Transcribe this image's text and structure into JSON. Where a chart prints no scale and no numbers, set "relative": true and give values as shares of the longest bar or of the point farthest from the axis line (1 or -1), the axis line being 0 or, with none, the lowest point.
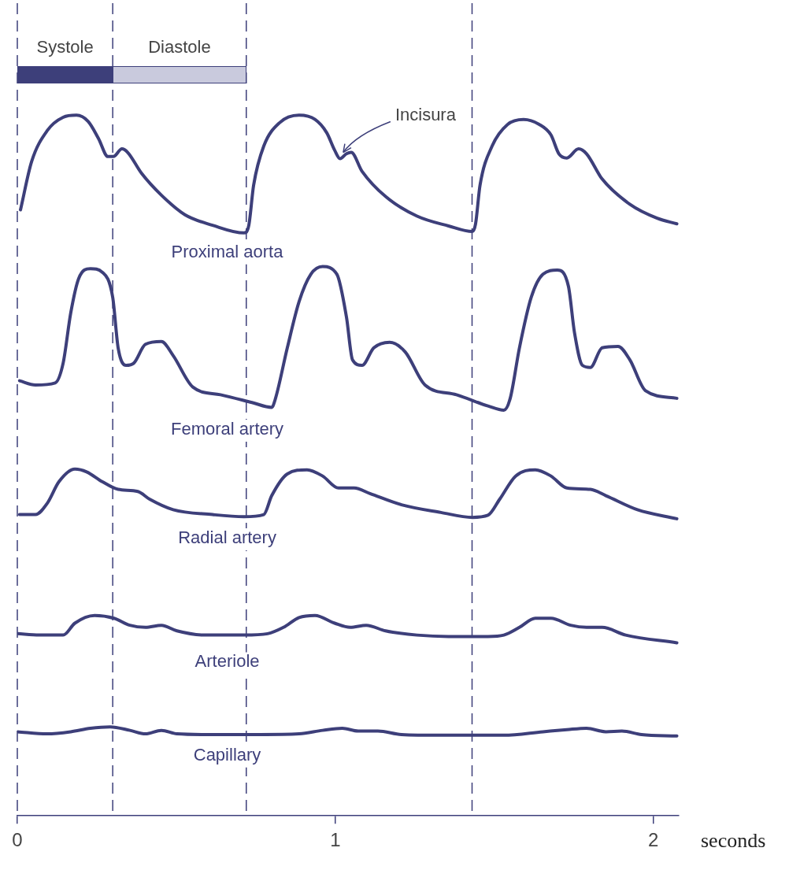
{
  "chart_data": {
    "type": "line",
    "relative": true,
    "xlabel": "seconds",
    "xlim": [
      0,
      2.08
    ],
    "xticks": [
      0,
      1,
      2
    ],
    "legend": false,
    "grid": false,
    "marker": "none",
    "line_style": "solid",
    "series": [
      {
        "name": "Proximal aorta",
        "color": "#3d3f7a",
        "x": [
          0.01,
          0.045,
          0.094,
          0.144,
          0.186,
          0.223,
          0.255,
          0.285,
          0.302,
          0.329,
          0.347,
          0.391,
          0.453,
          0.527,
          0.614,
          0.713,
          0.728,
          0.743,
          0.775,
          0.824,
          0.886,
          0.936,
          0.973,
          0.998,
          1.015,
          1.035,
          1.05,
          1.084,
          1.158,
          1.257,
          1.356,
          1.431,
          1.441,
          1.455,
          1.493,
          1.542,
          1.592,
          1.641,
          1.678,
          1.703,
          1.728,
          1.765,
          1.79,
          1.839,
          1.926,
          2.012,
          2.074
        ],
        "values": [
          0.865,
          0.934,
          0.978,
          0.997,
          1.0,
          0.991,
          0.967,
          0.941,
          0.941,
          0.952,
          0.947,
          0.917,
          0.886,
          0.858,
          0.843,
          0.832,
          0.843,
          0.9,
          0.956,
          0.989,
          1.0,
          0.994,
          0.975,
          0.95,
          0.938,
          0.945,
          0.947,
          0.92,
          0.884,
          0.856,
          0.842,
          0.834,
          0.845,
          0.9,
          0.956,
          0.987,
          0.994,
          0.987,
          0.972,
          0.945,
          0.939,
          0.952,
          0.945,
          0.909,
          0.873,
          0.853,
          0.845
        ]
      },
      {
        "name": "Femoral artery",
        "color": "#3d3f7a",
        "x": [
          0.007,
          0.057,
          0.119,
          0.144,
          0.168,
          0.193,
          0.23,
          0.267,
          0.3,
          0.317,
          0.342,
          0.366,
          0.403,
          0.453,
          0.49,
          0.552,
          0.639,
          0.738,
          0.8,
          0.812,
          0.849,
          0.886,
          0.923,
          0.96,
          1.005,
          1.035,
          1.054,
          1.084,
          1.121,
          1.171,
          1.22,
          1.282,
          1.381,
          1.48,
          1.53,
          1.55,
          1.579,
          1.616,
          1.653,
          1.698,
          1.733,
          1.752,
          1.777,
          1.802,
          1.839,
          1.889,
          1.926,
          1.975,
          2.074
        ],
        "values": [
          0.621,
          0.615,
          0.618,
          0.646,
          0.718,
          0.767,
          0.781,
          0.776,
          0.74,
          0.668,
          0.643,
          0.646,
          0.673,
          0.677,
          0.657,
          0.612,
          0.601,
          0.59,
          0.583,
          0.596,
          0.668,
          0.734,
          0.773,
          0.784,
          0.773,
          0.712,
          0.651,
          0.643,
          0.668,
          0.676,
          0.662,
          0.615,
          0.601,
          0.585,
          0.579,
          0.596,
          0.668,
          0.74,
          0.773,
          0.779,
          0.756,
          0.69,
          0.643,
          0.64,
          0.668,
          0.67,
          0.651,
          0.607,
          0.596
        ]
      },
      {
        "name": "Radial artery",
        "color": "#3d3f7a",
        "x": [
          0.007,
          0.057,
          0.094,
          0.131,
          0.181,
          0.218,
          0.267,
          0.317,
          0.379,
          0.416,
          0.49,
          0.614,
          0.713,
          0.775,
          0.8,
          0.849,
          0.911,
          0.96,
          1.01,
          1.059,
          1.109,
          1.208,
          1.332,
          1.431,
          1.48,
          1.517,
          1.567,
          1.629,
          1.678,
          1.728,
          1.802,
          1.851,
          1.95,
          2.074
        ],
        "values": [
          0.43,
          0.43,
          0.446,
          0.477,
          0.495,
          0.491,
          0.477,
          0.466,
          0.463,
          0.452,
          0.437,
          0.43,
          0.427,
          0.43,
          0.457,
          0.488,
          0.494,
          0.485,
          0.468,
          0.468,
          0.46,
          0.444,
          0.433,
          0.426,
          0.429,
          0.452,
          0.485,
          0.494,
          0.485,
          0.468,
          0.466,
          0.457,
          0.437,
          0.424
        ]
      },
      {
        "name": "Arteriole",
        "color": "#3d3f7a",
        "x": [
          0,
          0.069,
          0.144,
          0.181,
          0.243,
          0.304,
          0.354,
          0.403,
          0.453,
          0.502,
          0.589,
          0.713,
          0.787,
          0.837,
          0.886,
          0.936,
          0.998,
          1.047,
          1.097,
          1.158,
          1.257,
          1.356,
          1.48,
          1.53,
          1.579,
          1.629,
          1.678,
          1.74,
          1.79,
          1.839,
          1.913,
          2.074
        ],
        "values": [
          0.26,
          0.258,
          0.258,
          0.275,
          0.286,
          0.282,
          0.272,
          0.269,
          0.272,
          0.264,
          0.258,
          0.258,
          0.26,
          0.269,
          0.283,
          0.286,
          0.275,
          0.269,
          0.272,
          0.264,
          0.258,
          0.256,
          0.256,
          0.258,
          0.269,
          0.282,
          0.282,
          0.272,
          0.269,
          0.269,
          0.258,
          0.247
        ]
      },
      {
        "name": "Capillary",
        "color": "#3d3f7a",
        "x": [
          0,
          0.094,
          0.168,
          0.23,
          0.292,
          0.354,
          0.403,
          0.453,
          0.502,
          0.589,
          0.762,
          0.886,
          0.96,
          1.022,
          1.072,
          1.134,
          1.208,
          1.332,
          1.53,
          1.653,
          1.728,
          1.79,
          1.851,
          1.901,
          1.963,
          2.074
        ],
        "values": [
          0.12,
          0.117,
          0.12,
          0.125,
          0.127,
          0.122,
          0.117,
          0.122,
          0.117,
          0.116,
          0.116,
          0.117,
          0.122,
          0.125,
          0.121,
          0.121,
          0.116,
          0.115,
          0.115,
          0.12,
          0.123,
          0.125,
          0.12,
          0.121,
          0.116,
          0.114
        ]
      }
    ],
    "ref_lines": [
      {
        "axis": "x",
        "value": 0,
        "line_style": "dashed",
        "color": "#3d3f7a"
      },
      {
        "axis": "x",
        "value": 0.3,
        "line_style": "dashed",
        "color": "#3d3f7a"
      },
      {
        "axis": "x",
        "value": 0.72,
        "line_style": "dashed",
        "color": "#3d3f7a"
      },
      {
        "axis": "x",
        "value": 1.43,
        "line_style": "dashed",
        "color": "#3d3f7a"
      }
    ],
    "annotations": [
      "Systole",
      "Diastole",
      {
        "text": "Incisura",
        "x": 1.015,
        "y": 0.938
      }
    ]
  }
}
